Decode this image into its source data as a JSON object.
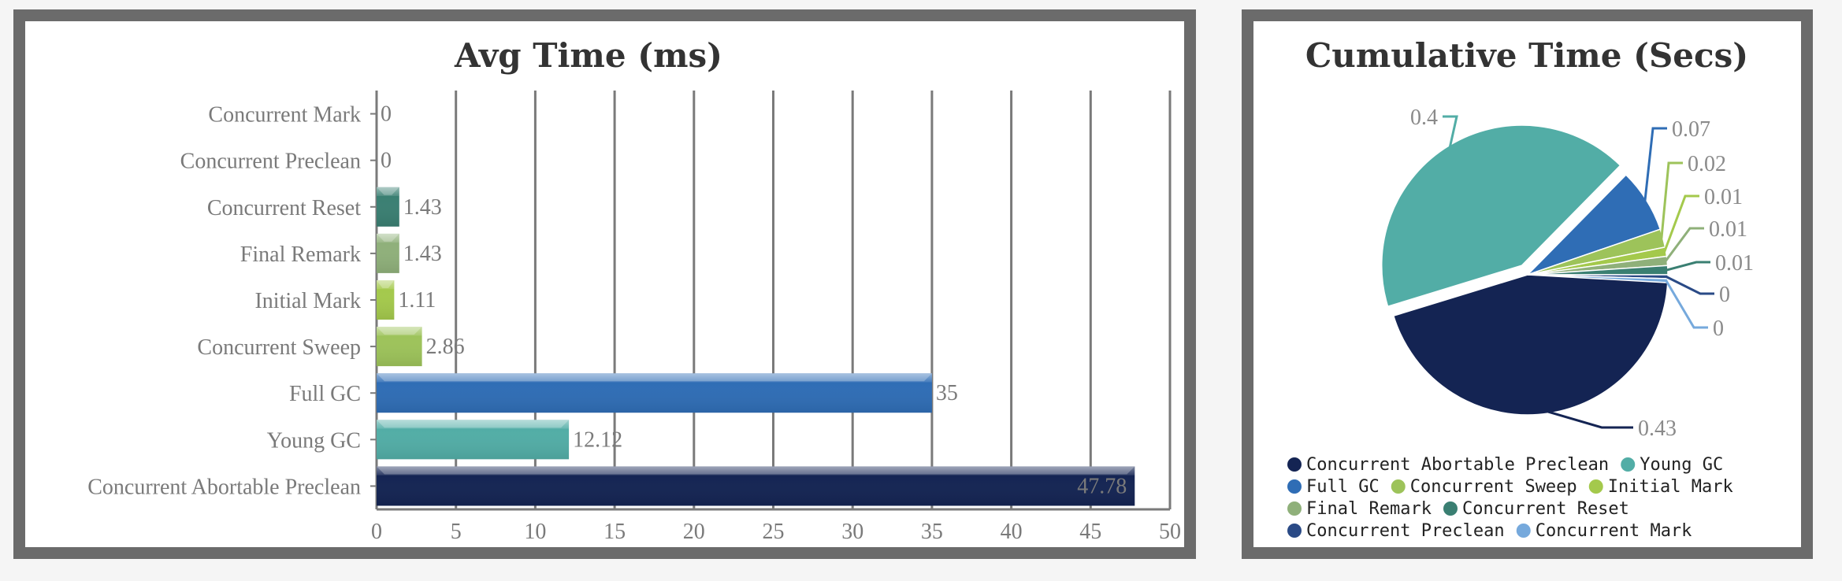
{
  "chart_data": [
    {
      "type": "bar",
      "orientation": "horizontal",
      "title": "Avg Time (ms)",
      "categories": [
        "Concurrent Mark",
        "Concurrent Preclean",
        "Concurrent Reset",
        "Final Remark",
        "Initial Mark",
        "Concurrent Sweep",
        "Full GC",
        "Young GC",
        "Concurrent Abortable Preclean"
      ],
      "values": [
        0,
        0,
        1.43,
        1.43,
        1.11,
        2.86,
        35,
        12.12,
        47.78
      ],
      "value_labels": [
        "0",
        "0",
        "1.43",
        "1.43",
        "1.11",
        "2.86",
        "35",
        "12.12",
        "47.78"
      ],
      "colors": [
        "#76a9dc",
        "#2a4a86",
        "#3a7f72",
        "#8fb07a",
        "#a4c94c",
        "#9dc35a",
        "#2f6db5",
        "#52ada6",
        "#142453"
      ],
      "xlim": [
        0,
        50
      ],
      "xticks": [
        0,
        5,
        10,
        15,
        20,
        25,
        30,
        35,
        40,
        45,
        50
      ],
      "grid": true,
      "xlabel": "",
      "ylabel": ""
    },
    {
      "type": "pie",
      "title": "Cumulative Time (Secs)",
      "labels": [
        "Concurrent Abortable Preclean",
        "Young GC",
        "Full GC",
        "Concurrent Sweep",
        "Initial Mark",
        "Final Remark",
        "Concurrent Reset",
        "Concurrent Preclean",
        "Concurrent Mark"
      ],
      "values": [
        0.43,
        0.4,
        0.07,
        0.02,
        0.01,
        0.01,
        0.01,
        0,
        0
      ],
      "value_labels": [
        "0.43",
        "0.4",
        "0.07",
        "0.02",
        "0.01",
        "0.01",
        "0.01",
        "0",
        "0"
      ],
      "colors": [
        "#142453",
        "#52ada6",
        "#2f6db5",
        "#9dc35a",
        "#a4c94c",
        "#8fb07a",
        "#3a7f72",
        "#2a4a86",
        "#76a9dc"
      ],
      "legend_position": "bottom"
    }
  ]
}
